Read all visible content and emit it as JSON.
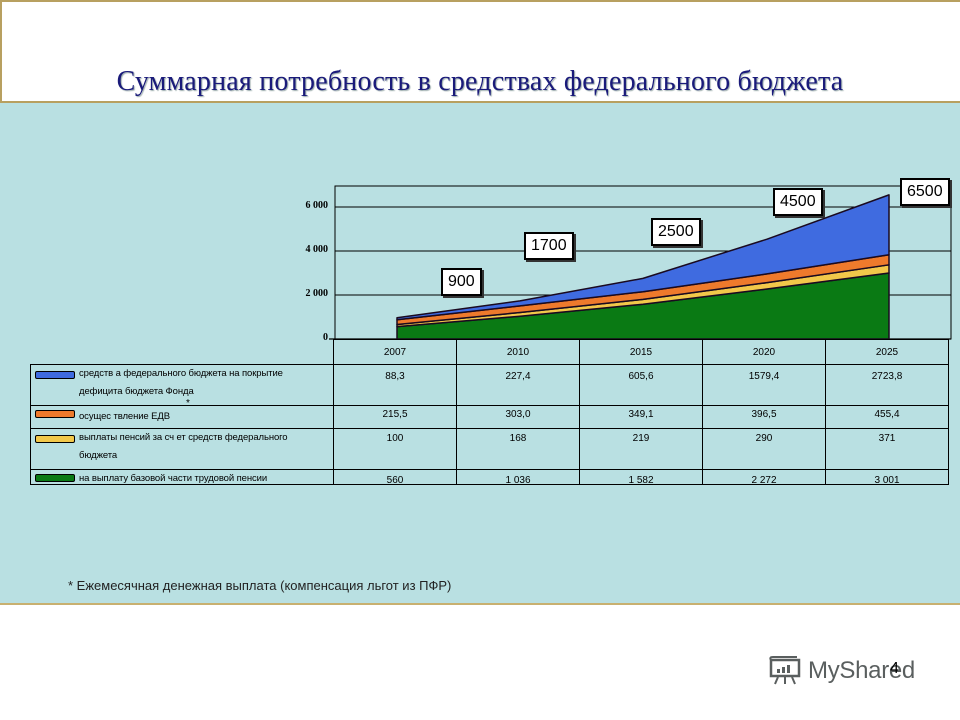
{
  "slide": {
    "title": "Суммарная потребность в средствах федерального бюджета",
    "footnote": "* Ежемесячная денежная выплата (компенсация льгот из ПФР)",
    "page_number": "4",
    "watermark": "MyShared",
    "asterisk": "*"
  },
  "chart_data": {
    "type": "area",
    "stacked": true,
    "title": "Суммарная потребность в средствах федерального бюджета",
    "categories": [
      "2007",
      "2010",
      "2015",
      "2020",
      "2025"
    ],
    "y_ticks": [
      "0",
      "2 000",
      "4 000",
      "6 000"
    ],
    "ylim": [
      0,
      7000
    ],
    "grid": true,
    "legend_position": "data-table",
    "series": [
      {
        "name": "на выплату базовой части трудовой пенсии",
        "color": "#0a7a14",
        "values": [
          560,
          1036,
          1582,
          2272,
          3001
        ],
        "labels": [
          "560",
          "1 036",
          "1 582",
          "2 272",
          "3 001"
        ]
      },
      {
        "name": "выплаты пенсий за счет средств федерального бюджета",
        "color": "#f2c84a",
        "values": [
          100,
          168,
          219,
          290,
          371
        ],
        "labels": [
          "100",
          "168",
          "219",
          "290",
          "371"
        ]
      },
      {
        "name": "осуществление ЕДВ*",
        "color": "#ee7a2c",
        "values": [
          215.5,
          303.0,
          349.1,
          396.5,
          455.4
        ],
        "labels": [
          "215,5",
          "303,0",
          "349,1",
          "396,5",
          "455,4"
        ]
      },
      {
        "name": "средства федерального бюджета на покрытие дефицита бюджета Фонда",
        "color": "#3f6be0",
        "values": [
          88.3,
          227.4,
          605.6,
          1579.4,
          2723.8
        ],
        "labels": [
          "88,3",
          "227,4",
          "605,6",
          "1579,4",
          "2723,8"
        ]
      }
    ],
    "annotations": [
      {
        "x": "2007",
        "text": "900"
      },
      {
        "x": "2010",
        "text": "1700"
      },
      {
        "x": "2015",
        "text": "2500"
      },
      {
        "x": "2020",
        "text": "4500"
      },
      {
        "x": "2025",
        "text": "6500"
      }
    ]
  },
  "table": {
    "rows": [
      {
        "label_line1": "средств а федерального бюджета на покрытие",
        "label_line2": "дефицита бюджета Фонда",
        "color": "#3f6be0"
      },
      {
        "label_line1": "осущес твление ЕДВ",
        "label_line2": "",
        "color": "#ee7a2c"
      },
      {
        "label_line1": "выплаты пенсий за сч ет средств  федерального",
        "label_line2": "бюджета",
        "color": "#f2c84a"
      },
      {
        "label_line1": "на выплату базовой части трудовой пенсии",
        "label_line2": "",
        "color": "#0a7a14"
      }
    ]
  }
}
